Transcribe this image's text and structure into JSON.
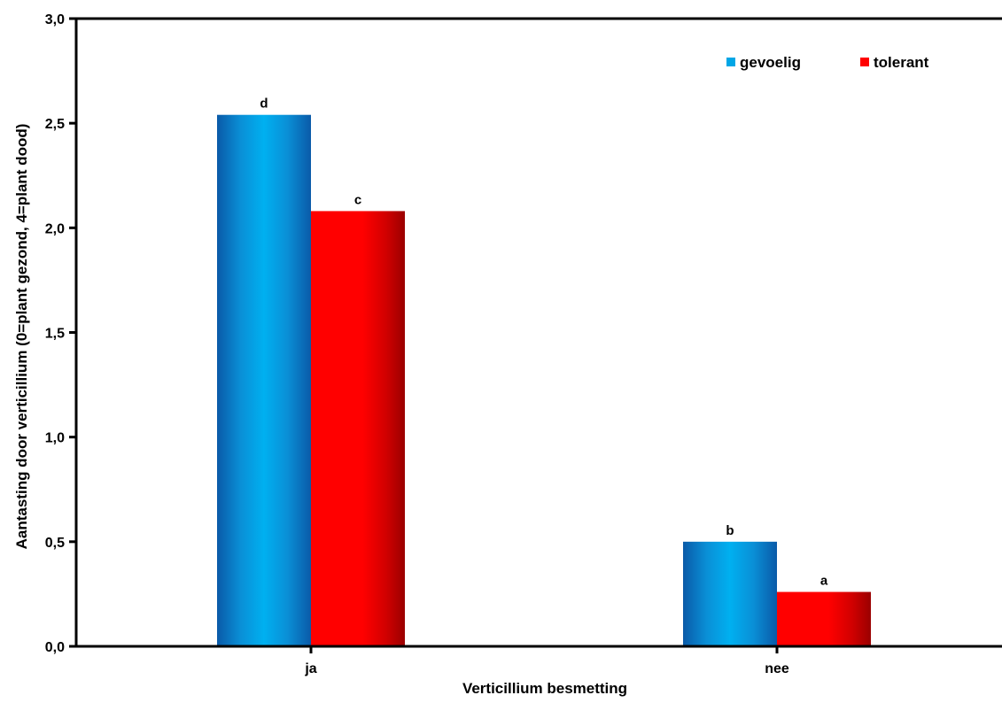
{
  "chart_data": {
    "type": "bar",
    "title": "",
    "xlabel": "Verticillium besmetting",
    "ylabel": "Aantasting door verticillium (0=plant gezond, 4=plant dood)",
    "categories": [
      "ja",
      "nee"
    ],
    "ylim": [
      0,
      3
    ],
    "yticks": [
      "0,0",
      "0,5",
      "1,0",
      "1,5",
      "2,0",
      "2,5",
      "3,0"
    ],
    "ytick_values": [
      0,
      0.5,
      1,
      1.5,
      2,
      2.5,
      3
    ],
    "grid": false,
    "legend_position": "top-right",
    "series": [
      {
        "name": "gevoelig",
        "color": "#00a6e6",
        "values": [
          2.54,
          0.5
        ],
        "labels": [
          "d",
          "b"
        ]
      },
      {
        "name": "tolerant",
        "color": "#ff0000",
        "values": [
          2.08,
          0.26
        ],
        "labels": [
          "c",
          "a"
        ]
      }
    ]
  }
}
